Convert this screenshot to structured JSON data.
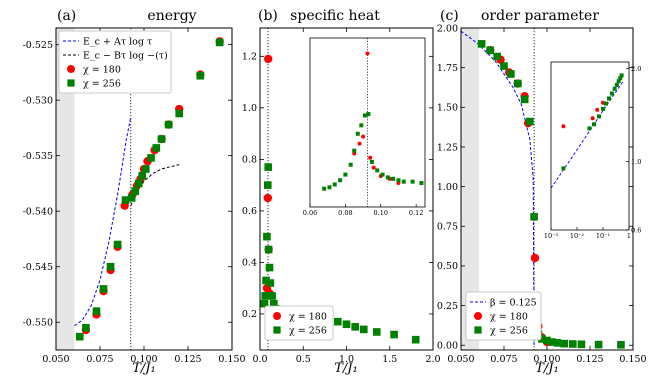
{
  "chart_data": [
    {
      "type": "scatter",
      "panel_label": "(a)",
      "title": "energy",
      "xlabel": "T/J₁",
      "ylabel": "",
      "xlim": [
        0.05,
        0.15
      ],
      "ylim": [
        -0.5525,
        -0.5235
      ],
      "xticks": [
        "0.050",
        "0.075",
        "0.100",
        "0.125",
        "0.150"
      ],
      "xtick_values": [
        0.05,
        0.075,
        0.1,
        0.125,
        0.15
      ],
      "yticks": [
        "-0.525",
        "-0.530",
        "-0.535",
        "-0.540",
        "-0.545",
        "-0.550"
      ],
      "ytick_values": [
        -0.525,
        -0.53,
        -0.535,
        -0.54,
        -0.545,
        -0.55
      ],
      "shaded_x": [
        0.05,
        0.0605
      ],
      "vline_x": 0.0925,
      "series": [
        {
          "name": "E_c + Aτ log τ",
          "kind": "line",
          "color": "#0000ff",
          "dash": "dashed",
          "x": [
            0.0605,
            0.065,
            0.07,
            0.075,
            0.08,
            0.085,
            0.09,
            0.0925
          ],
          "y": [
            -0.5503,
            -0.5498,
            -0.5485,
            -0.5462,
            -0.5428,
            -0.5385,
            -0.5335,
            -0.5315
          ]
        },
        {
          "name": "E_c − Bτ log −(τ)",
          "kind": "line",
          "color": "#000000",
          "dash": "dashed",
          "x": [
            0.0925,
            0.095,
            0.1,
            0.105,
            0.11,
            0.115,
            0.12
          ],
          "y": [
            -0.5395,
            -0.5385,
            -0.5373,
            -0.5366,
            -0.5362,
            -0.536,
            -0.5358
          ]
        },
        {
          "name": "χ = 180",
          "kind": "marker",
          "marker": "circle",
          "color": "#ff0000",
          "x": [
            0.067,
            0.073,
            0.077,
            0.081,
            0.085,
            0.089,
            0.0935,
            0.096,
            0.098,
            0.1,
            0.102,
            0.106,
            0.11,
            0.114,
            0.12,
            0.132,
            0.143
          ],
          "y": [
            -0.5507,
            -0.5493,
            -0.5472,
            -0.5453,
            -0.5432,
            -0.5395,
            -0.5385,
            -0.5377,
            -0.5371,
            -0.5362,
            -0.5355,
            -0.5345,
            -0.5335,
            -0.5322,
            -0.5308,
            -0.5277,
            -0.5247
          ]
        },
        {
          "name": "χ = 256",
          "kind": "marker",
          "marker": "square",
          "color": "#008000",
          "x": [
            0.0635,
            0.067,
            0.073,
            0.077,
            0.081,
            0.085,
            0.0895,
            0.093,
            0.095,
            0.097,
            0.099,
            0.101,
            0.104,
            0.107,
            0.11,
            0.114,
            0.12,
            0.132,
            0.143
          ],
          "y": [
            -0.5513,
            -0.5505,
            -0.549,
            -0.547,
            -0.545,
            -0.543,
            -0.539,
            -0.5388,
            -0.5382,
            -0.5375,
            -0.5368,
            -0.5362,
            -0.5352,
            -0.5343,
            -0.5335,
            -0.5322,
            -0.5312,
            -0.5278,
            -0.5248
          ]
        }
      ],
      "legend_placement": "upper-left"
    },
    {
      "type": "scatter",
      "panel_label": "(b)",
      "title": "specific heat",
      "xlabel": "T/J₁",
      "ylabel": "",
      "xlim": [
        0,
        2.0
      ],
      "ylim": [
        0.06,
        1.31
      ],
      "xticks": [
        "0.0",
        "0.5",
        "1.0",
        "1.5",
        "2.0"
      ],
      "xtick_values": [
        0,
        0.5,
        1.0,
        1.5,
        2.0
      ],
      "yticks": [
        "0.2",
        "0.4",
        "0.6",
        "0.8",
        "1.0",
        "1.2"
      ],
      "ytick_values": [
        0.2,
        0.4,
        0.6,
        0.8,
        1.0,
        1.2
      ],
      "vline_x": 0.0925,
      "series": [
        {
          "name": "χ = 180",
          "kind": "marker",
          "marker": "circle",
          "color": "#ff0000",
          "x": [
            0.08,
            0.09,
            0.095,
            0.1,
            0.11
          ],
          "y": [
            0.3,
            0.65,
            1.19,
            0.45,
            0.28
          ]
        },
        {
          "name": "χ = 256",
          "kind": "marker",
          "marker": "square",
          "color": "#008000",
          "x": [
            0.05,
            0.06,
            0.07,
            0.08,
            0.09,
            0.095,
            0.1,
            0.11,
            0.12,
            0.14,
            0.16,
            0.18,
            0.2,
            0.23,
            0.26,
            0.3,
            0.35,
            0.4,
            0.45,
            0.5,
            0.55,
            0.6,
            0.65,
            0.7,
            0.75,
            0.8,
            0.9,
            1.0,
            1.1,
            1.2,
            1.35,
            1.55,
            1.8
          ],
          "y": [
            0.24,
            0.27,
            0.33,
            0.5,
            0.7,
            0.77,
            0.45,
            0.38,
            0.32,
            0.27,
            0.24,
            0.22,
            0.205,
            0.195,
            0.19,
            0.19,
            0.195,
            0.2,
            0.203,
            0.205,
            0.205,
            0.203,
            0.2,
            0.195,
            0.19,
            0.183,
            0.17,
            0.16,
            0.15,
            0.14,
            0.13,
            0.12,
            0.1
          ]
        }
      ],
      "legend_placement": "lower-left",
      "inset": {
        "xlim": [
          0.06,
          0.125
        ],
        "ylim": [
          0.1,
          1.3
        ],
        "xticks": [
          "0.06",
          "0.08",
          "0.10",
          "0.12"
        ],
        "xtick_values": [
          0.06,
          0.08,
          0.1,
          0.12
        ],
        "vline_x": 0.0925,
        "series": [
          {
            "name": "χ = 180",
            "marker": "circle",
            "color": "#ff0000",
            "x": [
              0.085,
              0.088,
              0.09,
              0.0925,
              0.094,
              0.096,
              0.1,
              0.105,
              0.11
            ],
            "y": [
              0.48,
              0.55,
              0.6,
              1.19,
              0.45,
              0.38,
              0.32,
              0.3,
              0.27
            ]
          },
          {
            "name": "χ = 256",
            "marker": "square",
            "color": "#008000",
            "x": [
              0.068,
              0.071,
              0.074,
              0.077,
              0.08,
              0.083,
              0.085,
              0.087,
              0.089,
              0.091,
              0.093,
              0.095,
              0.098,
              0.101,
              0.104,
              0.107,
              0.11,
              0.113,
              0.118,
              0.123
            ],
            "y": [
              0.23,
              0.24,
              0.26,
              0.29,
              0.33,
              0.4,
              0.5,
              0.62,
              0.68,
              0.75,
              0.76,
              0.42,
              0.36,
              0.33,
              0.31,
              0.3,
              0.29,
              0.28,
              0.28,
              0.27
            ]
          }
        ]
      }
    },
    {
      "type": "scatter",
      "panel_label": "(c)",
      "title": "order parameter",
      "xlabel": "T/J₁",
      "ylabel": "",
      "xlim": [
        0.05,
        0.15
      ],
      "ylim": [
        -0.03,
        2.0
      ],
      "xticks": [
        "0.050",
        "0.075",
        "0.100",
        "0.125",
        "0.150"
      ],
      "xtick_values": [
        0.05,
        0.075,
        0.1,
        0.125,
        0.15
      ],
      "yticks": [
        "0.00",
        "0.25",
        "0.50",
        "0.75",
        "1.00",
        "1.25",
        "1.50",
        "1.75",
        "2.00"
      ],
      "ytick_values": [
        0,
        0.25,
        0.5,
        0.75,
        1.0,
        1.25,
        1.5,
        1.75,
        2.0
      ],
      "shaded_x": [
        0.05,
        0.0605
      ],
      "vline_x": 0.0925,
      "series": [
        {
          "name": "β = 0.125",
          "kind": "line",
          "color": "#0000ff",
          "dash": "dashed",
          "x": [
            0.05,
            0.06,
            0.07,
            0.08,
            0.085,
            0.09,
            0.092,
            0.0925
          ],
          "y": [
            1.98,
            1.9,
            1.79,
            1.63,
            1.52,
            1.3,
            1.05,
            0.0
          ]
        },
        {
          "name": "χ = 180",
          "kind": "marker",
          "marker": "circle",
          "color": "#ff0000",
          "x": [
            0.067,
            0.073,
            0.078,
            0.083,
            0.087,
            0.089,
            0.093,
            0.095,
            0.097,
            0.1
          ],
          "y": [
            1.86,
            1.8,
            1.72,
            1.65,
            1.57,
            1.4,
            0.55,
            0.12,
            0.05,
            0.02
          ]
        },
        {
          "name": "χ = 256",
          "kind": "marker",
          "marker": "square",
          "color": "#008000",
          "x": [
            0.062,
            0.067,
            0.071,
            0.075,
            0.079,
            0.083,
            0.087,
            0.09,
            0.0925,
            0.095,
            0.097,
            0.1,
            0.103,
            0.106,
            0.11,
            0.115,
            0.12,
            0.13,
            0.143
          ],
          "y": [
            1.9,
            1.86,
            1.82,
            1.76,
            1.71,
            1.65,
            1.55,
            1.41,
            0.81,
            0.07,
            0.04,
            0.03,
            0.02,
            0.015,
            0.01,
            0.008,
            0.006,
            0.004,
            0.003
          ]
        }
      ],
      "legend_placement": "lower-left",
      "inset": {
        "xscale": "log",
        "yscale": "log",
        "xlim": [
          0.001,
          1
        ],
        "ylim": [
          0.6,
          2.1
        ],
        "xticks": [
          "10⁻³",
          "10⁻²",
          "10⁻¹",
          "1"
        ],
        "xtick_values": [
          0.001,
          0.01,
          0.1,
          1
        ],
        "yticks": [
          "0.6",
          "1.0",
          "2.0"
        ],
        "ytick_values": [
          0.6,
          1.0,
          2.0
        ],
        "series": [
          {
            "name": "β = 0.125",
            "kind": "line",
            "color": "#0000ff",
            "dash": "dashed",
            "x": [
              0.001,
              0.01,
              0.1,
              0.3,
              0.6
            ],
            "y": [
              0.82,
              1.09,
              1.46,
              1.67,
              1.82
            ]
          },
          {
            "name": "χ = 180",
            "marker": "circle",
            "color": "#ff0000",
            "x": [
              0.003,
              0.04,
              0.06,
              0.1
            ],
            "y": [
              1.3,
              1.38,
              1.47,
              1.55
            ]
          },
          {
            "name": "χ = 256",
            "marker": "square",
            "color": "#008000",
            "x": [
              0.003,
              0.03,
              0.045,
              0.07,
              0.1,
              0.13,
              0.17,
              0.22,
              0.28,
              0.34,
              0.4,
              0.46,
              0.52
            ],
            "y": [
              0.95,
              1.28,
              1.32,
              1.4,
              1.48,
              1.54,
              1.6,
              1.66,
              1.72,
              1.77,
              1.82,
              1.86,
              1.9
            ]
          }
        ]
      }
    }
  ]
}
